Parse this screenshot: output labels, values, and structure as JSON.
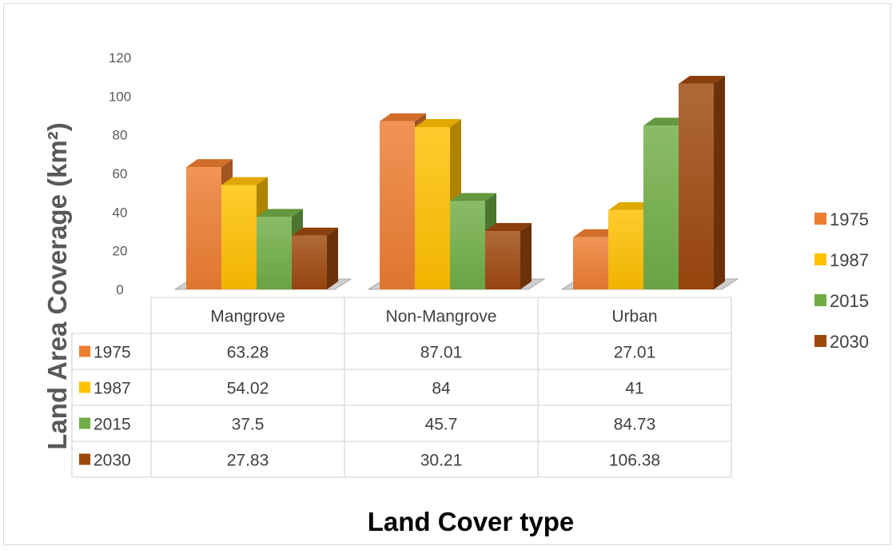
{
  "chart_data": {
    "type": "bar",
    "xlabel": "Land Cover type",
    "ylabel": "Land Area Coverage (km²)",
    "ylim": [
      0,
      120
    ],
    "yticks": [
      "0",
      "20",
      "40",
      "60",
      "80",
      "100",
      "120"
    ],
    "categories": [
      "Mangrove",
      "Non-Mangrove",
      "Urban"
    ],
    "series": [
      {
        "name": "1975",
        "color": "#ED7D31",
        "values": [
          63.28,
          87.01,
          27.01
        ],
        "labels": [
          "63.28",
          "87.01",
          "27.01"
        ]
      },
      {
        "name": "1987",
        "color": "#FFC000",
        "values": [
          54.02,
          84,
          41
        ],
        "labels": [
          "54.02",
          "84",
          "41"
        ]
      },
      {
        "name": "2015",
        "color": "#70AD47",
        "values": [
          37.5,
          45.7,
          84.73
        ],
        "labels": [
          "37.5",
          "45.7",
          "84.73"
        ]
      },
      {
        "name": "2030",
        "color": "#9E480E",
        "values": [
          27.83,
          30.21,
          106.38
        ],
        "labels": [
          "27.83",
          "30.21",
          "106.38"
        ]
      }
    ],
    "legend_position": "right",
    "data_table": true,
    "grid": false,
    "style": "3d-clustered-column"
  }
}
